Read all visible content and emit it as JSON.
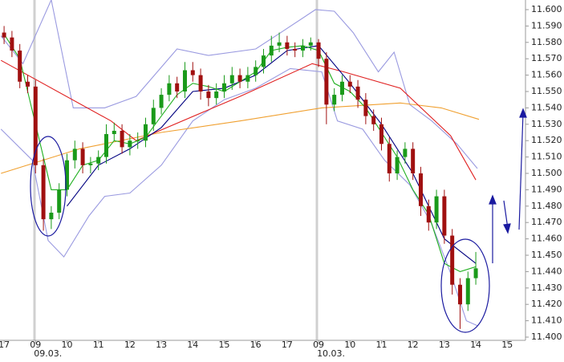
{
  "chart_data": {
    "type": "candlestick",
    "x": [
      0,
      0.25,
      0.5,
      0.75,
      1,
      1.25,
      1.5,
      1.75,
      2,
      2.25,
      2.5,
      2.75,
      3,
      3.25,
      3.5,
      3.75,
      4,
      4.25,
      4.5,
      4.75,
      5,
      5.25,
      5.5,
      5.75,
      6,
      6.25,
      6.5,
      6.75,
      7,
      7.25,
      7.5,
      7.75,
      8,
      8.25,
      8.5,
      8.75,
      9,
      9.25,
      9.5,
      9.75,
      10,
      10.25,
      10.5,
      10.75,
      11,
      11.25,
      11.5,
      11.75,
      12,
      12.25,
      12.5,
      12.75,
      13,
      13.25,
      13.5,
      13.75,
      14,
      14.25,
      14.5,
      14.75,
      15
    ],
    "open": [
      11.586,
      11.583,
      11.575,
      11.556,
      11.553,
      11.505,
      11.472,
      11.476,
      11.49,
      11.508,
      11.515,
      11.505,
      11.506,
      11.51,
      11.524,
      11.526,
      11.516,
      11.52,
      11.52,
      11.53,
      11.54,
      11.548,
      11.555,
      11.55,
      11.563,
      11.56,
      11.55,
      11.546,
      11.55,
      11.555,
      11.56,
      11.556,
      11.56,
      11.565,
      11.572,
      11.578,
      11.58,
      11.576,
      11.575,
      11.578,
      11.58,
      11.57,
      11.542,
      11.548,
      11.556,
      11.553,
      11.545,
      11.535,
      11.53,
      11.518,
      11.5,
      11.51,
      11.515,
      11.5,
      11.48,
      11.47,
      11.486,
      11.462,
      11.432,
      11.42,
      11.436
    ],
    "high": [
      11.59,
      11.587,
      11.579,
      11.56,
      11.557,
      11.509,
      11.48,
      11.494,
      11.512,
      11.52,
      11.519,
      11.51,
      11.514,
      11.53,
      11.531,
      11.53,
      11.524,
      11.525,
      11.534,
      11.545,
      11.552,
      11.56,
      11.559,
      11.568,
      11.568,
      11.564,
      11.554,
      11.555,
      11.56,
      11.565,
      11.564,
      11.565,
      11.569,
      11.576,
      11.584,
      11.586,
      11.584,
      11.58,
      11.582,
      11.583,
      11.582,
      11.574,
      11.552,
      11.56,
      11.56,
      11.557,
      11.549,
      11.539,
      11.534,
      11.522,
      11.514,
      11.519,
      11.519,
      11.504,
      11.484,
      11.49,
      11.49,
      11.466,
      11.436,
      11.44,
      11.452
    ],
    "low": [
      11.579,
      11.571,
      11.552,
      11.549,
      11.5,
      11.465,
      11.466,
      11.472,
      11.486,
      11.503,
      11.5,
      11.5,
      11.502,
      11.506,
      11.52,
      11.512,
      11.511,
      11.515,
      11.516,
      11.526,
      11.536,
      11.544,
      11.546,
      11.546,
      11.556,
      11.545,
      11.541,
      11.542,
      11.546,
      11.551,
      11.552,
      11.552,
      11.556,
      11.561,
      11.568,
      11.574,
      11.572,
      11.571,
      11.571,
      11.575,
      11.565,
      11.53,
      11.538,
      11.544,
      11.549,
      11.54,
      11.53,
      11.526,
      11.514,
      11.495,
      11.496,
      11.506,
      11.496,
      11.474,
      11.465,
      11.466,
      11.457,
      11.426,
      11.405,
      11.416,
      11.432
    ],
    "close": [
      11.583,
      11.575,
      11.556,
      11.553,
      11.505,
      11.472,
      11.476,
      11.49,
      11.508,
      11.515,
      11.505,
      11.506,
      11.51,
      11.524,
      11.526,
      11.516,
      11.52,
      11.52,
      11.53,
      11.54,
      11.548,
      11.555,
      11.55,
      11.563,
      11.56,
      11.55,
      11.546,
      11.55,
      11.555,
      11.56,
      11.556,
      11.56,
      11.565,
      11.572,
      11.578,
      11.58,
      11.576,
      11.575,
      11.578,
      11.58,
      11.57,
      11.542,
      11.548,
      11.556,
      11.553,
      11.545,
      11.535,
      11.53,
      11.518,
      11.5,
      11.51,
      11.515,
      11.5,
      11.48,
      11.47,
      11.486,
      11.462,
      11.432,
      11.42,
      11.436,
      11.442
    ],
    "up_color": "#1a9a1a",
    "down_color": "#a01010",
    "series": [
      {
        "color": "#9a9ae0",
        "x": [
          -0.1,
          0.6,
          1.5,
          2.2,
          3.2,
          4.2,
          5.5,
          6.5,
          8.0,
          8.8,
          9.9,
          10.5,
          11.1,
          11.9,
          12.4,
          12.9,
          13.6,
          14.4,
          15.05
        ],
        "values": [
          11.584,
          11.567,
          11.606,
          11.54,
          11.54,
          11.547,
          11.576,
          11.572,
          11.576,
          11.586,
          11.6,
          11.599,
          11.586,
          11.562,
          11.574,
          11.542,
          11.532,
          11.518,
          11.503
        ]
      },
      {
        "color": "#9a9ae0",
        "x": [
          -0.1,
          0.9,
          1.4,
          1.9,
          2.7,
          3.2,
          4.0,
          5.0,
          6.0,
          7.0,
          8.0,
          9.1,
          10.1,
          10.6,
          11.4,
          12.1,
          12.9,
          13.6,
          14.2,
          14.7,
          15.05
        ],
        "values": [
          11.527,
          11.508,
          11.459,
          11.449,
          11.474,
          11.486,
          11.488,
          11.505,
          11.532,
          11.545,
          11.552,
          11.564,
          11.562,
          11.532,
          11.527,
          11.508,
          11.493,
          11.469,
          11.439,
          11.41,
          11.407
        ]
      },
      {
        "color": "#f0a030",
        "x": [
          -0.1,
          2.4,
          5,
          7.5,
          10.1,
          12.6,
          13.9,
          15.1
        ],
        "values": [
          11.5,
          11.515,
          11.525,
          11.532,
          11.54,
          11.543,
          11.54,
          11.533
        ]
      },
      {
        "color": "#e02020",
        "x": [
          -0.1,
          3.4,
          4.2,
          7.5,
          9.8,
          10.8,
          12.6,
          14.2,
          15
        ],
        "values": [
          11.569,
          11.532,
          11.52,
          11.547,
          11.567,
          11.562,
          11.552,
          11.523,
          11.496
        ]
      },
      {
        "color": "#000080",
        "x": [
          2,
          3,
          4,
          5,
          6,
          7,
          8,
          9,
          10,
          11,
          12,
          13,
          14,
          15
        ],
        "values": [
          11.48,
          11.505,
          11.515,
          11.528,
          11.55,
          11.552,
          11.56,
          11.575,
          11.578,
          11.555,
          11.53,
          11.5,
          11.46,
          11.445
        ]
      },
      {
        "color": "#20b020",
        "x": [
          0,
          0.5,
          1,
          1.5,
          2,
          2.5,
          3,
          3.5,
          4,
          4.5,
          5,
          5.5,
          6,
          6.5,
          7,
          7.5,
          8,
          8.5,
          9,
          9.5,
          10,
          10.5,
          11,
          11.5,
          12,
          12.5,
          13,
          13.5,
          14,
          14.5,
          15
        ],
        "values": [
          11.585,
          11.57,
          11.53,
          11.49,
          11.49,
          11.505,
          11.508,
          11.52,
          11.518,
          11.522,
          11.535,
          11.548,
          11.555,
          11.553,
          11.55,
          11.556,
          11.562,
          11.575,
          11.577,
          11.578,
          11.575,
          11.555,
          11.55,
          11.54,
          11.525,
          11.51,
          11.49,
          11.475,
          11.445,
          11.44,
          11.443
        ]
      }
    ],
    "xlim": [
      -0.13,
      16.58
    ],
    "xticks": [
      {
        "value": 0,
        "label": "17"
      },
      {
        "value": 1,
        "label": "09"
      },
      {
        "value": 2,
        "label": "10"
      },
      {
        "value": 3,
        "label": "11"
      },
      {
        "value": 4,
        "label": "12"
      },
      {
        "value": 5,
        "label": "13"
      },
      {
        "value": 6,
        "label": "14"
      },
      {
        "value": 7,
        "label": "15"
      },
      {
        "value": 8,
        "label": "16"
      },
      {
        "value": 9,
        "label": "17"
      },
      {
        "value": 10,
        "label": "09"
      },
      {
        "value": 11,
        "label": "10"
      },
      {
        "value": 12,
        "label": "11"
      },
      {
        "value": 13,
        "label": "12"
      },
      {
        "value": 14,
        "label": "13"
      },
      {
        "value": 15,
        "label": "14"
      },
      {
        "value": 16,
        "label": "15"
      }
    ],
    "date_labels": [
      {
        "value": 1,
        "label": "09.03."
      },
      {
        "value": 10,
        "label": "10.03."
      }
    ],
    "ylim": [
      11.4,
      11.6
    ],
    "yticks": [
      {
        "value": 11.4,
        "label": "11.400"
      },
      {
        "value": 11.41,
        "label": "11.410"
      },
      {
        "value": 11.42,
        "label": "11.420"
      },
      {
        "value": 11.43,
        "label": "11.430"
      },
      {
        "value": 11.44,
        "label": "11.440"
      },
      {
        "value": 11.45,
        "label": "11.450"
      },
      {
        "value": 11.46,
        "label": "11.460"
      },
      {
        "value": 11.47,
        "label": "11.470"
      },
      {
        "value": 11.48,
        "label": "11.480"
      },
      {
        "value": 11.49,
        "label": "11.490"
      },
      {
        "value": 11.5,
        "label": "11.500"
      },
      {
        "value": 11.51,
        "label": "11.510"
      },
      {
        "value": 11.52,
        "label": "11.520"
      },
      {
        "value": 11.53,
        "label": "11.530"
      },
      {
        "value": 11.54,
        "label": "11.540"
      },
      {
        "value": 11.55,
        "label": "11.550"
      },
      {
        "value": 11.56,
        "label": "11.560"
      },
      {
        "value": 11.57,
        "label": "11.570"
      },
      {
        "value": 11.58,
        "label": "11.580"
      },
      {
        "value": 11.59,
        "label": "11.590"
      },
      {
        "value": 11.6,
        "label": "11.600"
      }
    ]
  }
}
